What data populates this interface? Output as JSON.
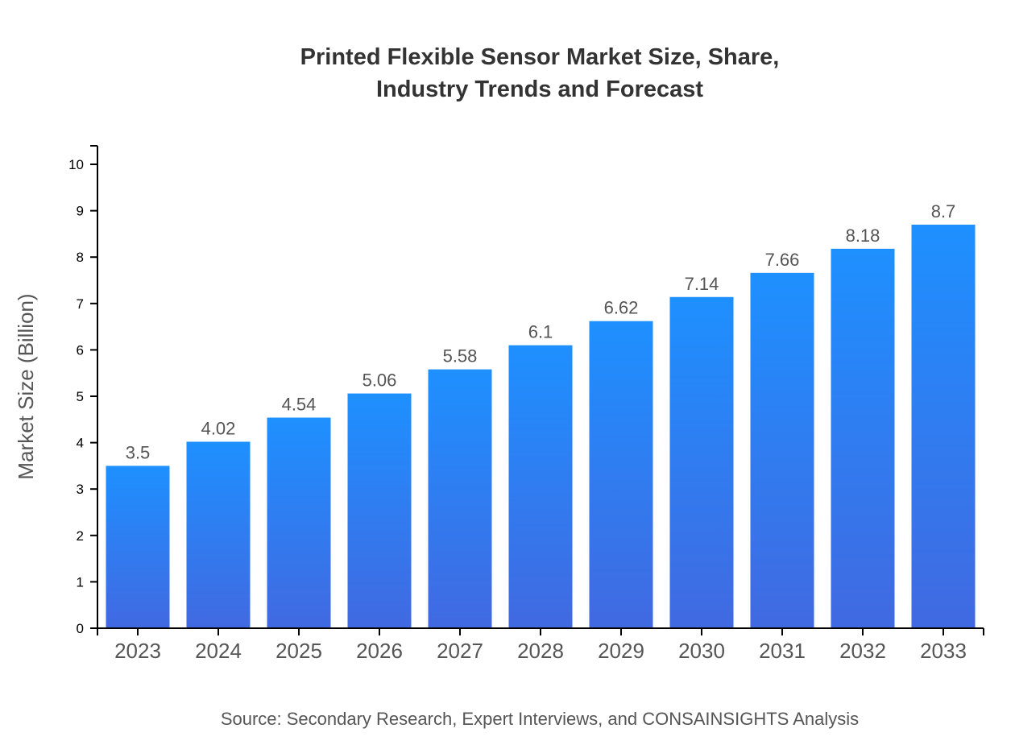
{
  "chart_data": {
    "type": "bar",
    "title_lines": [
      "Printed Flexible Sensor Market Size, Share,",
      "Industry Trends and Forecast"
    ],
    "xlabel": "",
    "ylabel": "Market Size (Billion)",
    "categories": [
      "2023",
      "2024",
      "2025",
      "2026",
      "2027",
      "2028",
      "2029",
      "2030",
      "2031",
      "2032",
      "2033"
    ],
    "values": [
      3.5,
      4.02,
      4.54,
      5.06,
      5.58,
      6.1,
      6.62,
      7.14,
      7.66,
      8.18,
      8.7
    ],
    "ylim": [
      0,
      10.4
    ],
    "yticks": [
      0,
      1,
      2,
      3,
      4,
      5,
      6,
      7,
      8,
      9,
      10
    ],
    "grid": false,
    "bar_gradient": {
      "top": "#1e90ff",
      "bottom": "#4169e1"
    },
    "source": "Source: Secondary Research, Expert Interviews, and CONSAINSIGHTS Analysis"
  }
}
